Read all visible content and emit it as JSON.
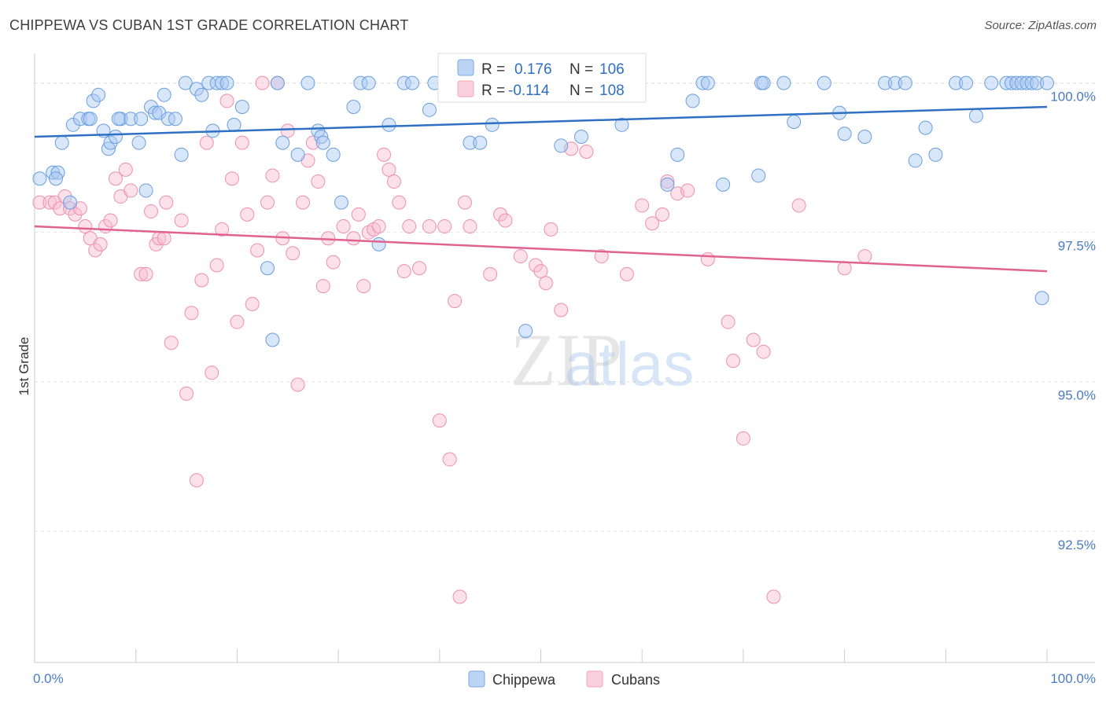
{
  "chart_data": {
    "type": "scatter",
    "title": "CHIPPEWA VS CUBAN 1ST GRADE CORRELATION CHART",
    "source": "Source: ZipAtlas.com",
    "ylabel": "1st Grade",
    "xlim": [
      0,
      100
    ],
    "ylim": [
      90.3,
      100.35
    ],
    "y_ticks": [
      92.5,
      95.0,
      97.5,
      100.0
    ],
    "y_tick_labels": [
      "92.5%",
      "95.0%",
      "97.5%",
      "100.0%"
    ],
    "x_tick_labels": [
      "0.0%",
      "100.0%"
    ],
    "grid": true,
    "legend_placement": "bottom-center",
    "watermark": "ZIPatlas",
    "colors": {
      "chippewa": "#7aaae8",
      "cubans": "#f4a0bc",
      "chippewa_line": "#2f6fc4",
      "cubans_line": "#e0628f"
    },
    "stats": [
      {
        "r_label": "R =",
        "r_value": "0.176",
        "n_label": "N =",
        "n_value": "106"
      },
      {
        "r_label": "R =",
        "r_value": "-0.114",
        "n_label": "N =",
        "n_value": "108"
      }
    ],
    "series": [
      {
        "name": "Chippewa",
        "trend": {
          "x": [
            0,
            100
          ],
          "y": [
            99.1,
            99.6
          ]
        },
        "x": [
          0.5,
          1.8,
          2.3,
          2.1,
          2.7,
          3.5,
          3.8,
          4.5,
          5.8,
          5.3,
          5.5,
          6.3,
          6.8,
          7.3,
          7.5,
          8.0,
          8.5,
          8.3,
          9.5,
          10.3,
          10.5,
          11.0,
          11.5,
          11.9,
          12.3,
          12.8,
          13.2,
          13.9,
          14.5,
          14.9,
          16.0,
          16.5,
          17.2,
          17.6,
          18.0,
          18.5,
          19.0,
          19.7,
          20.5,
          23.0,
          23.5,
          24.0,
          24.5,
          26.0,
          27.0,
          28.0,
          28.3,
          28.5,
          29.5,
          30.3,
          31.5,
          32.2,
          33.0,
          34.0,
          35.0,
          36.5,
          37.3,
          39.0,
          39.5,
          40.5,
          43.0,
          44.0,
          45.2,
          46.5,
          48.5,
          50.0,
          52.0,
          54.0,
          55.0,
          57.0,
          58.0,
          59.5,
          62.5,
          63.5,
          65.0,
          66.0,
          66.5,
          68.0,
          71.5,
          71.8,
          72.0,
          74.0,
          75.0,
          78.0,
          79.5,
          80.0,
          82.0,
          84.0,
          85.0,
          86.0,
          87.0,
          88.0,
          89.0,
          91.0,
          92.0,
          93.0,
          94.5,
          96.0,
          96.5,
          97.0,
          97.5,
          98.0,
          98.5,
          99.0,
          99.5,
          100.0
        ],
        "y": [
          98.4,
          98.5,
          98.5,
          98.4,
          99.0,
          98.0,
          99.3,
          99.4,
          99.7,
          99.4,
          99.4,
          99.8,
          99.2,
          98.9,
          99.0,
          99.1,
          99.4,
          99.4,
          99.4,
          99.0,
          99.4,
          98.2,
          99.6,
          99.5,
          99.5,
          99.8,
          99.4,
          99.4,
          98.8,
          100.0,
          99.9,
          99.8,
          100.0,
          99.2,
          100.0,
          100.0,
          100.0,
          99.3,
          99.6,
          96.9,
          95.7,
          100.0,
          99.0,
          98.8,
          100.0,
          99.2,
          99.1,
          99.0,
          98.8,
          98.0,
          99.6,
          100.0,
          100.0,
          97.3,
          99.3,
          100.0,
          100.0,
          99.55,
          100.0,
          100.0,
          99.0,
          99.0,
          99.3,
          100.0,
          95.85,
          100.0,
          98.95,
          99.1,
          100.0,
          100.0,
          99.3,
          100.0,
          98.3,
          98.8,
          99.7,
          100.0,
          100.0,
          98.3,
          98.45,
          100.0,
          100.0,
          100.0,
          99.35,
          100.0,
          99.5,
          99.15,
          99.1,
          100.0,
          100.0,
          100.0,
          98.7,
          99.25,
          98.8,
          100.0,
          100.0,
          99.45,
          100.0,
          100.0,
          100.0,
          100.0,
          100.0,
          100.0,
          100.0,
          100.0,
          96.4,
          100.0
        ]
      },
      {
        "name": "Cubans",
        "trend": {
          "x": [
            0,
            100
          ],
          "y": [
            97.6,
            96.85
          ]
        },
        "x": [
          0.5,
          1.5,
          2.0,
          2.5,
          3.0,
          3.5,
          4.0,
          4.5,
          5.0,
          5.5,
          6.0,
          6.5,
          7.0,
          7.5,
          8.0,
          8.5,
          9.0,
          9.5,
          10.5,
          11.0,
          11.5,
          12.0,
          12.3,
          12.8,
          13.0,
          13.5,
          14.5,
          15.0,
          15.5,
          16.0,
          16.5,
          17.0,
          17.5,
          18.0,
          18.5,
          19.0,
          19.5,
          20.0,
          20.5,
          21.0,
          21.5,
          22.0,
          22.5,
          23.0,
          23.5,
          24.0,
          24.5,
          25.0,
          25.5,
          26.0,
          26.5,
          27.0,
          27.5,
          28.0,
          28.5,
          29.0,
          29.5,
          30.5,
          31.5,
          32.0,
          32.5,
          33.0,
          33.5,
          34.0,
          34.5,
          35.0,
          35.5,
          36.0,
          36.5,
          37.0,
          38.0,
          39.0,
          40.0,
          40.5,
          41.0,
          41.5,
          42.0,
          42.5,
          43.0,
          45.0,
          46.0,
          46.5,
          48.0,
          49.5,
          50.0,
          50.5,
          51.0,
          52.0,
          53.0,
          54.5,
          56.0,
          58.5,
          60.0,
          61.0,
          62.0,
          62.5,
          63.5,
          64.5,
          66.5,
          68.5,
          69.0,
          70.0,
          71.0,
          72.0,
          73.0,
          75.5,
          80.0,
          82.0
        ],
        "y": [
          98.0,
          98.0,
          98.0,
          97.9,
          98.1,
          97.9,
          97.8,
          97.9,
          97.6,
          97.4,
          97.2,
          97.3,
          97.6,
          97.7,
          98.4,
          98.1,
          98.55,
          98.2,
          96.8,
          96.8,
          97.85,
          97.3,
          97.4,
          97.4,
          98.0,
          95.65,
          97.7,
          94.8,
          96.15,
          93.35,
          96.7,
          99.0,
          95.15,
          96.95,
          97.55,
          99.7,
          98.4,
          96.0,
          99.0,
          97.8,
          96.3,
          97.2,
          100.0,
          98.0,
          98.45,
          100.0,
          97.4,
          99.2,
          97.15,
          94.95,
          98.0,
          98.7,
          99.0,
          98.35,
          96.6,
          97.4,
          97.0,
          97.6,
          97.4,
          97.8,
          96.6,
          97.5,
          97.55,
          97.6,
          98.8,
          98.55,
          98.35,
          98.0,
          96.85,
          97.6,
          96.9,
          97.6,
          94.35,
          97.6,
          93.7,
          96.35,
          91.4,
          98.0,
          97.6,
          96.8,
          97.8,
          97.7,
          97.1,
          96.95,
          96.85,
          96.65,
          97.55,
          96.2,
          98.9,
          98.85,
          97.1,
          96.8,
          97.95,
          97.65,
          97.8,
          98.35,
          98.15,
          98.2,
          97.05,
          96.0,
          95.35,
          94.05,
          95.7,
          95.5,
          91.4,
          97.95,
          96.9,
          97.1
        ]
      }
    ]
  }
}
